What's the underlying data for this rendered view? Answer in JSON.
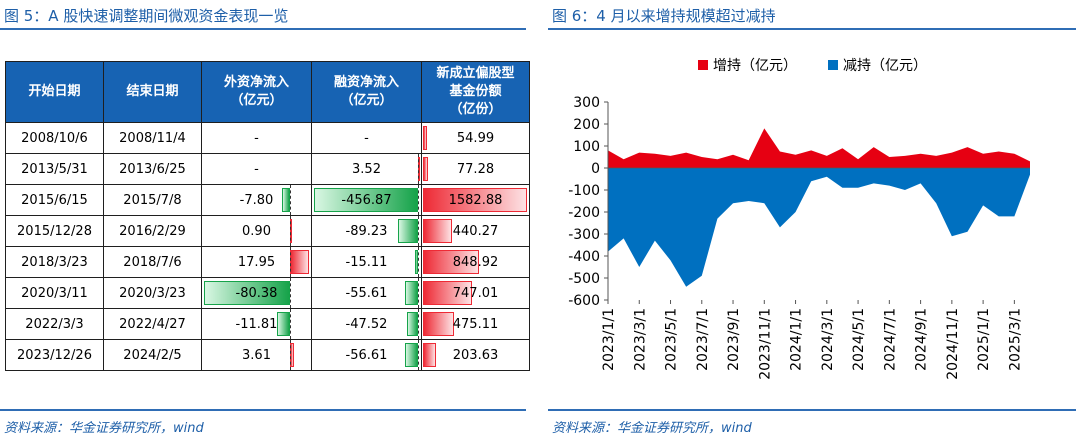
{
  "left_panel": {
    "title": "图 5：A 股快速调整期间微观资金表现一览",
    "source": "资料来源：华金证券研究所，wind"
  },
  "right_panel": {
    "title": "图 6：4 月以来增持规模超过减持",
    "source": "资料来源：华金证券研究所，wind"
  },
  "colors": {
    "positive": "#e60012",
    "negative": "#0070c0",
    "header": "#1763b3",
    "green_bar": "#16a34a",
    "red_bar": "#ee2a35"
  },
  "chart_data": [
    {
      "type": "table",
      "columns": [
        "开始日期",
        "结束日期",
        "外资净流入\n（亿元）",
        "融资净流入\n（亿元）",
        "新成立偏股型\n基金份额\n（亿份）"
      ],
      "rows": [
        [
          "2008/10/6",
          "2008/11/4",
          "-",
          "-",
          "54.99"
        ],
        [
          "2013/5/31",
          "2013/6/25",
          "-",
          "3.52",
          "77.28"
        ],
        [
          "2015/6/15",
          "2015/7/8",
          "-7.80",
          "-456.87",
          "1582.88"
        ],
        [
          "2015/12/28",
          "2016/2/29",
          "0.90",
          "-89.23",
          "440.27"
        ],
        [
          "2018/3/23",
          "2018/7/6",
          "17.95",
          "-15.11",
          "848.92"
        ],
        [
          "2020/3/11",
          "2020/3/23",
          "-80.38",
          "-55.61",
          "747.01"
        ],
        [
          "2022/3/3",
          "2022/4/27",
          "-11.81",
          "-47.52",
          "475.11"
        ],
        [
          "2023/12/26",
          "2024/2/5",
          "3.61",
          "-56.61",
          "203.63"
        ]
      ]
    },
    {
      "type": "area",
      "legend_placement": "top",
      "legend": [
        "增持（亿元）",
        "减持（亿元）"
      ],
      "x": [
        "2023/1/1",
        "2023/2/1",
        "2023/3/1",
        "2023/4/1",
        "2023/5/1",
        "2023/6/1",
        "2023/7/1",
        "2023/8/1",
        "2023/9/1",
        "2023/10/1",
        "2023/11/1",
        "2023/12/1",
        "2024/1/1",
        "2024/2/1",
        "2024/3/1",
        "2024/4/1",
        "2024/5/1",
        "2024/6/1",
        "2024/7/1",
        "2024/8/1",
        "2024/9/1",
        "2024/10/1",
        "2024/11/1",
        "2024/12/1",
        "2025/1/1",
        "2025/2/1",
        "2025/3/1",
        "2025/4/1"
      ],
      "xticks": [
        "2023/1/1",
        "2023/3/1",
        "2023/5/1",
        "2023/7/1",
        "2023/9/1",
        "2023/11/1",
        "2024/1/1",
        "2024/3/1",
        "2024/5/1",
        "2024/7/1",
        "2024/9/1",
        "2024/11/1",
        "2025/1/1",
        "2025/3/1"
      ],
      "yticks": [
        300,
        200,
        100,
        0,
        -100,
        -200,
        -300,
        -400,
        -500,
        -600
      ],
      "ylim": [
        -600,
        300
      ],
      "series": [
        {
          "name": "增持（亿元）",
          "values": [
            80,
            40,
            70,
            65,
            55,
            70,
            50,
            40,
            60,
            35,
            180,
            75,
            60,
            80,
            55,
            90,
            40,
            95,
            50,
            55,
            65,
            55,
            70,
            95,
            65,
            75,
            65,
            30
          ]
        },
        {
          "name": "减持（亿元）",
          "values": [
            -380,
            -320,
            -450,
            -330,
            -420,
            -540,
            -490,
            -230,
            -160,
            -150,
            -160,
            -270,
            -200,
            -60,
            -40,
            -90,
            -90,
            -70,
            -80,
            -100,
            -70,
            -160,
            -310,
            -290,
            -170,
            -220,
            -220,
            -30
          ]
        }
      ]
    }
  ]
}
